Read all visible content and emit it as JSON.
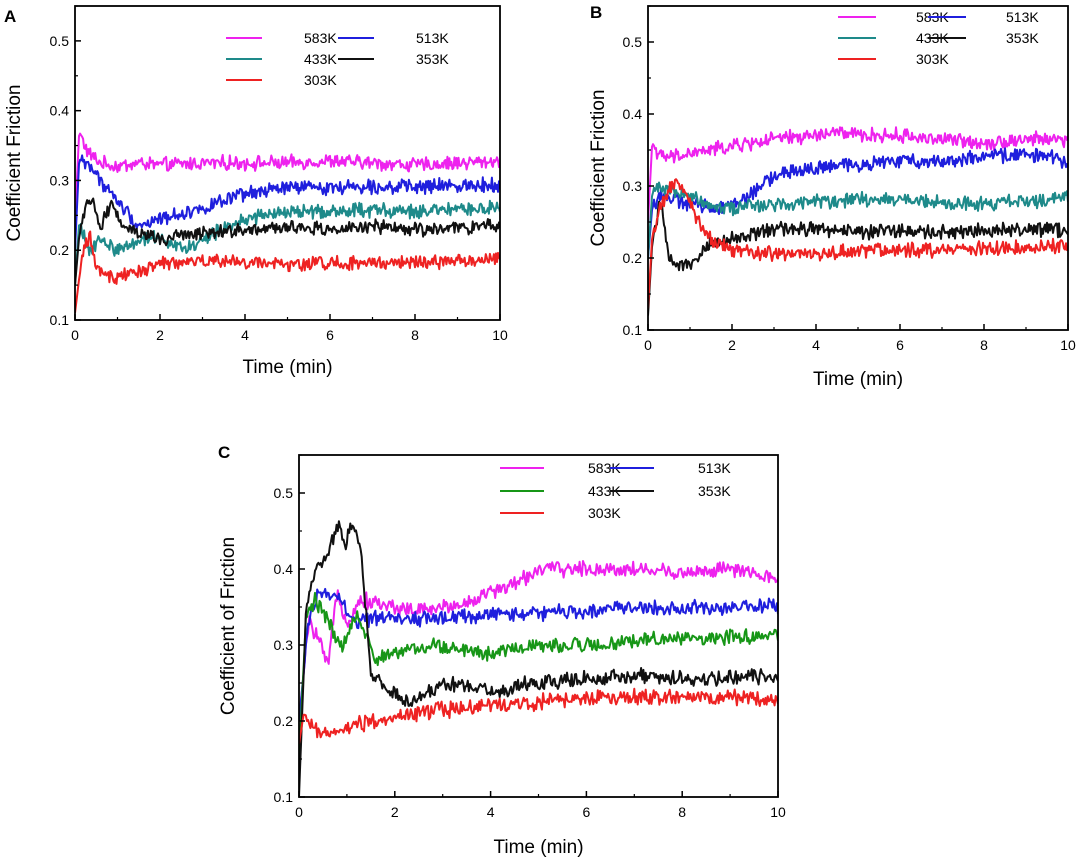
{
  "figure": {
    "panels": [
      "A",
      "B",
      "C"
    ]
  },
  "colors": {
    "583K": "#ee22ee",
    "513K": "#1f1fdd",
    "433K_teal": "#1e8a8a",
    "433K_green": "#179617",
    "353K": "#111111",
    "303K": "#ee2222"
  },
  "chart_data": [
    {
      "panel": "A",
      "type": "line",
      "title": "",
      "xlabel": "Time (min)",
      "ylabel": "Coefficient  Friction",
      "xlim": [
        0,
        10
      ],
      "ylim": [
        0.1,
        0.55
      ],
      "xticks": [
        0,
        2,
        4,
        6,
        8,
        10
      ],
      "yticks": [
        0.1,
        0.2,
        0.3,
        0.4,
        0.5
      ],
      "xtick_labels": [
        "0",
        "2",
        "4",
        "6",
        "8",
        "10"
      ],
      "ytick_labels": [
        "0.1",
        "0.2",
        "0.3",
        "0.4",
        "0.5"
      ],
      "legend": {
        "placement": "top-right",
        "columns": 2
      },
      "series": [
        {
          "name": "583K",
          "color": "#ee22ee",
          "x": [
            0,
            0.1,
            0.3,
            0.6,
            1,
            1.5,
            2,
            3,
            4,
            5,
            6,
            7,
            8,
            9,
            10
          ],
          "y": [
            0.24,
            0.37,
            0.34,
            0.325,
            0.32,
            0.325,
            0.322,
            0.325,
            0.325,
            0.325,
            0.328,
            0.325,
            0.322,
            0.325,
            0.328
          ]
        },
        {
          "name": "513K",
          "color": "#1f1fdd",
          "x": [
            0,
            0.1,
            0.3,
            0.6,
            1,
            1.5,
            2,
            3,
            4,
            5,
            6,
            7,
            8,
            9,
            10
          ],
          "y": [
            0.2,
            0.33,
            0.325,
            0.3,
            0.27,
            0.235,
            0.245,
            0.26,
            0.28,
            0.29,
            0.29,
            0.292,
            0.29,
            0.293,
            0.295
          ]
        },
        {
          "name": "433K",
          "color": "#1e8a8a",
          "x": [
            0,
            0.1,
            0.3,
            0.6,
            1,
            1.5,
            2,
            2.6,
            3.3,
            4,
            5,
            6,
            7,
            8,
            9,
            10
          ],
          "y": [
            0.15,
            0.24,
            0.2,
            0.215,
            0.2,
            0.215,
            0.22,
            0.2,
            0.225,
            0.245,
            0.255,
            0.255,
            0.258,
            0.255,
            0.258,
            0.26
          ]
        },
        {
          "name": "353K",
          "color": "#111111",
          "x": [
            0,
            0.1,
            0.25,
            0.45,
            0.6,
            0.85,
            1.1,
            1.5,
            2,
            3,
            4,
            5,
            6,
            7,
            8,
            9,
            10
          ],
          "y": [
            0.15,
            0.22,
            0.26,
            0.27,
            0.23,
            0.27,
            0.24,
            0.225,
            0.215,
            0.225,
            0.23,
            0.232,
            0.23,
            0.233,
            0.23,
            0.232,
            0.235
          ]
        },
        {
          "name": "303K",
          "color": "#ee2222",
          "x": [
            0,
            0.1,
            0.2,
            0.35,
            0.5,
            0.7,
            1,
            1.5,
            2,
            3,
            4,
            5,
            6,
            7,
            8,
            9,
            10
          ],
          "y": [
            0.11,
            0.16,
            0.2,
            0.22,
            0.175,
            0.165,
            0.16,
            0.17,
            0.18,
            0.185,
            0.182,
            0.18,
            0.182,
            0.18,
            0.183,
            0.185,
            0.188
          ]
        }
      ]
    },
    {
      "panel": "B",
      "type": "line",
      "title": "",
      "xlabel": "Time (min)",
      "ylabel": "Coefficient  Friction",
      "xlim": [
        0,
        10
      ],
      "ylim": [
        0.1,
        0.55
      ],
      "xticks": [
        0,
        2,
        4,
        6,
        8,
        10
      ],
      "yticks": [
        0.1,
        0.2,
        0.3,
        0.4,
        0.5
      ],
      "xtick_labels": [
        "0",
        "2",
        "4",
        "6",
        "8",
        "10"
      ],
      "ytick_labels": [
        "0.1",
        "0.2",
        "0.3",
        "0.4",
        "0.5"
      ],
      "legend": {
        "placement": "top-right",
        "columns": 2
      },
      "series": [
        {
          "name": "583K",
          "color": "#ee22ee",
          "x": [
            0,
            0.1,
            0.3,
            0.6,
            1,
            1.5,
            2,
            3,
            4,
            4.5,
            5,
            6,
            7,
            8,
            9,
            10
          ],
          "y": [
            0.25,
            0.36,
            0.34,
            0.34,
            0.345,
            0.35,
            0.355,
            0.365,
            0.37,
            0.375,
            0.37,
            0.37,
            0.365,
            0.36,
            0.365,
            0.365
          ]
        },
        {
          "name": "513K",
          "color": "#1f1fdd",
          "x": [
            0,
            0.1,
            0.3,
            0.6,
            1,
            1.5,
            2,
            2.5,
            3,
            4,
            5,
            6,
            7,
            8,
            9,
            10
          ],
          "y": [
            0.2,
            0.27,
            0.29,
            0.28,
            0.275,
            0.27,
            0.275,
            0.29,
            0.315,
            0.325,
            0.33,
            0.335,
            0.335,
            0.34,
            0.345,
            0.335
          ]
        },
        {
          "name": "433K",
          "color": "#1e8a8a",
          "x": [
            0,
            0.1,
            0.3,
            0.6,
            1,
            1.5,
            2,
            3,
            4,
            5,
            6,
            7,
            8,
            9,
            10
          ],
          "y": [
            0.2,
            0.29,
            0.3,
            0.295,
            0.285,
            0.275,
            0.27,
            0.275,
            0.28,
            0.28,
            0.282,
            0.275,
            0.275,
            0.278,
            0.285
          ]
        },
        {
          "name": "353K",
          "color": "#111111",
          "x": [
            0,
            0.1,
            0.3,
            0.5,
            0.7,
            1,
            1.5,
            2,
            3,
            4,
            5,
            6,
            7,
            8,
            9,
            10
          ],
          "y": [
            0.12,
            0.22,
            0.28,
            0.2,
            0.19,
            0.195,
            0.22,
            0.225,
            0.24,
            0.24,
            0.238,
            0.236,
            0.235,
            0.238,
            0.24,
            0.238
          ]
        },
        {
          "name": "303K",
          "color": "#ee2222",
          "x": [
            0,
            0.1,
            0.3,
            0.6,
            0.9,
            1.2,
            1.5,
            2,
            3,
            4,
            5,
            6,
            7,
            8,
            9,
            10
          ],
          "y": [
            0.13,
            0.23,
            0.27,
            0.305,
            0.29,
            0.25,
            0.225,
            0.21,
            0.205,
            0.205,
            0.21,
            0.212,
            0.21,
            0.213,
            0.215,
            0.218
          ]
        }
      ]
    },
    {
      "panel": "C",
      "type": "line",
      "title": "",
      "xlabel": "Time (min)",
      "ylabel": "Coefficient of Friction",
      "xlim": [
        0,
        10
      ],
      "ylim": [
        0.1,
        0.55
      ],
      "xticks": [
        0,
        2,
        4,
        6,
        8,
        10
      ],
      "yticks": [
        0.1,
        0.2,
        0.3,
        0.4,
        0.5
      ],
      "xtick_labels": [
        "0",
        "2",
        "4",
        "6",
        "8",
        "10"
      ],
      "ytick_labels": [
        "0.1",
        "0.2",
        "0.3",
        "0.4",
        "0.5"
      ],
      "legend": {
        "placement": "top-right",
        "columns": 2
      },
      "series": [
        {
          "name": "583K",
          "color": "#ee22ee",
          "x": [
            0,
            0.2,
            0.4,
            0.6,
            0.8,
            1,
            1.3,
            1.6,
            2,
            2.5,
            3,
            3.5,
            4,
            4.5,
            5,
            6,
            7,
            8,
            9,
            10
          ],
          "y": [
            0.2,
            0.33,
            0.31,
            0.27,
            0.37,
            0.33,
            0.36,
            0.355,
            0.35,
            0.345,
            0.35,
            0.355,
            0.37,
            0.38,
            0.4,
            0.4,
            0.4,
            0.395,
            0.4,
            0.385
          ]
        },
        {
          "name": "513K",
          "color": "#1f1fdd",
          "x": [
            0,
            0.2,
            0.4,
            0.6,
            0.9,
            1.1,
            1.5,
            2,
            3,
            4,
            5,
            6,
            7,
            8,
            9,
            10
          ],
          "y": [
            0.2,
            0.33,
            0.37,
            0.365,
            0.36,
            0.33,
            0.335,
            0.335,
            0.335,
            0.34,
            0.342,
            0.345,
            0.35,
            0.348,
            0.35,
            0.352
          ]
        },
        {
          "name": "433K",
          "color": "#179617",
          "x": [
            0,
            0.15,
            0.35,
            0.6,
            0.9,
            1.2,
            1.6,
            2,
            3,
            4,
            5,
            6,
            7,
            8,
            9,
            10
          ],
          "y": [
            0.15,
            0.34,
            0.36,
            0.33,
            0.3,
            0.34,
            0.28,
            0.29,
            0.3,
            0.29,
            0.3,
            0.3,
            0.305,
            0.31,
            0.31,
            0.315
          ]
        },
        {
          "name": "353K",
          "color": "#111111",
          "x": [
            0,
            0.15,
            0.35,
            0.6,
            0.85,
            0.95,
            1.1,
            1.3,
            1.5,
            1.8,
            2.3,
            3,
            4,
            5,
            6,
            7,
            8,
            9,
            10
          ],
          "y": [
            0.1,
            0.35,
            0.4,
            0.42,
            0.46,
            0.43,
            0.46,
            0.42,
            0.26,
            0.245,
            0.225,
            0.25,
            0.24,
            0.25,
            0.255,
            0.26,
            0.255,
            0.258,
            0.26
          ]
        },
        {
          "name": "303K",
          "color": "#ee2222",
          "x": [
            0,
            0.1,
            0.3,
            0.6,
            1,
            1.5,
            2,
            3,
            4,
            5,
            6,
            7,
            8,
            9,
            10
          ],
          "y": [
            0.17,
            0.21,
            0.19,
            0.185,
            0.19,
            0.2,
            0.205,
            0.215,
            0.22,
            0.225,
            0.23,
            0.232,
            0.233,
            0.23,
            0.228
          ]
        }
      ]
    }
  ]
}
